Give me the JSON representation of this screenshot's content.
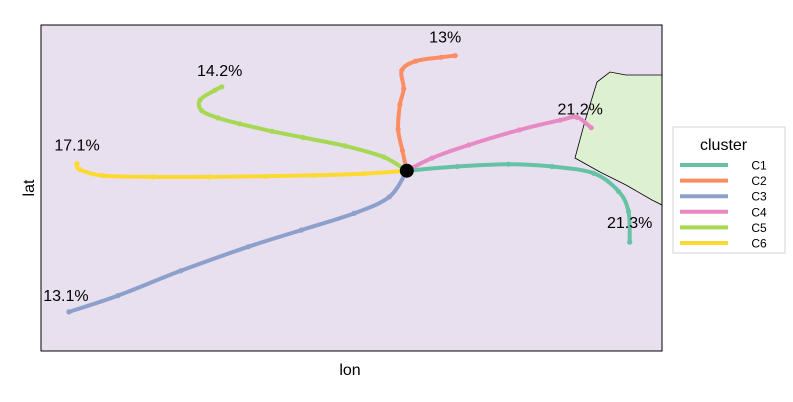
{
  "chart_data": {
    "type": "line",
    "title": "",
    "xlabel": "lon",
    "ylabel": "lat",
    "xlim": [
      0,
      100
    ],
    "ylim": [
      0,
      100
    ],
    "grid": false,
    "legend": {
      "title": "cluster",
      "placement": "right"
    },
    "panel_color": "#E8E0EF",
    "land_color": "#DEF0D2",
    "origin": {
      "x": 58.9,
      "y": 55.3
    },
    "series": [
      {
        "name": "C1",
        "color": "#66C2A5",
        "label": "21.3%",
        "points": [
          [
            58.9,
            55.3
          ],
          [
            67,
            56.6
          ],
          [
            75.3,
            57.3
          ],
          [
            82.3,
            56.6
          ],
          [
            89,
            54.5
          ],
          [
            93,
            49
          ],
          [
            94.6,
            42.8
          ],
          [
            94.8,
            33.4
          ]
        ]
      },
      {
        "name": "C2",
        "color": "#FC8D62",
        "label": "13%",
        "points": [
          [
            58.9,
            55.3
          ],
          [
            58.2,
            61.5
          ],
          [
            57.5,
            68
          ],
          [
            57.8,
            75.6
          ],
          [
            58.4,
            80.5
          ],
          [
            58.1,
            86.1
          ],
          [
            60.3,
            88.9
          ],
          [
            64.4,
            90.1
          ],
          [
            66.7,
            90.6
          ]
        ]
      },
      {
        "name": "C3",
        "color": "#8DA0CB",
        "label": "13.1%",
        "points": [
          [
            58.9,
            55.3
          ],
          [
            56.1,
            47.3
          ],
          [
            50.4,
            42.2
          ],
          [
            41.9,
            37.1
          ],
          [
            33.4,
            32
          ],
          [
            22.5,
            24.6
          ],
          [
            12.4,
            17
          ],
          [
            4.5,
            12
          ]
        ]
      },
      {
        "name": "C4",
        "color": "#E78AC3",
        "label": "21.2%",
        "points": [
          [
            58.9,
            55.3
          ],
          [
            63,
            59.2
          ],
          [
            68.9,
            63.2
          ],
          [
            77,
            67.8
          ],
          [
            83.6,
            70.8
          ],
          [
            86.3,
            71.7
          ],
          [
            88.6,
            68.5
          ]
        ]
      },
      {
        "name": "C5",
        "color": "#A6D854",
        "label": "14.2%",
        "points": [
          [
            58.9,
            55.3
          ],
          [
            55.2,
            59.5
          ],
          [
            49,
            62.9
          ],
          [
            42.2,
            65.5
          ],
          [
            37.2,
            67.4
          ],
          [
            32,
            69.7
          ],
          [
            28.5,
            71.5
          ],
          [
            25.9,
            73.7
          ],
          [
            25.6,
            77
          ],
          [
            28,
            80
          ],
          [
            29.1,
            81
          ]
        ]
      },
      {
        "name": "C6",
        "color": "#FFD92F",
        "label": "17.1%",
        "points": [
          [
            58.9,
            55.3
          ],
          [
            52,
            54.4
          ],
          [
            44,
            53.9
          ],
          [
            36,
            53.6
          ],
          [
            27,
            53.4
          ],
          [
            18,
            53.4
          ],
          [
            10,
            53.8
          ],
          [
            6.2,
            55.7
          ],
          [
            5.8,
            57.5
          ]
        ]
      }
    ]
  }
}
